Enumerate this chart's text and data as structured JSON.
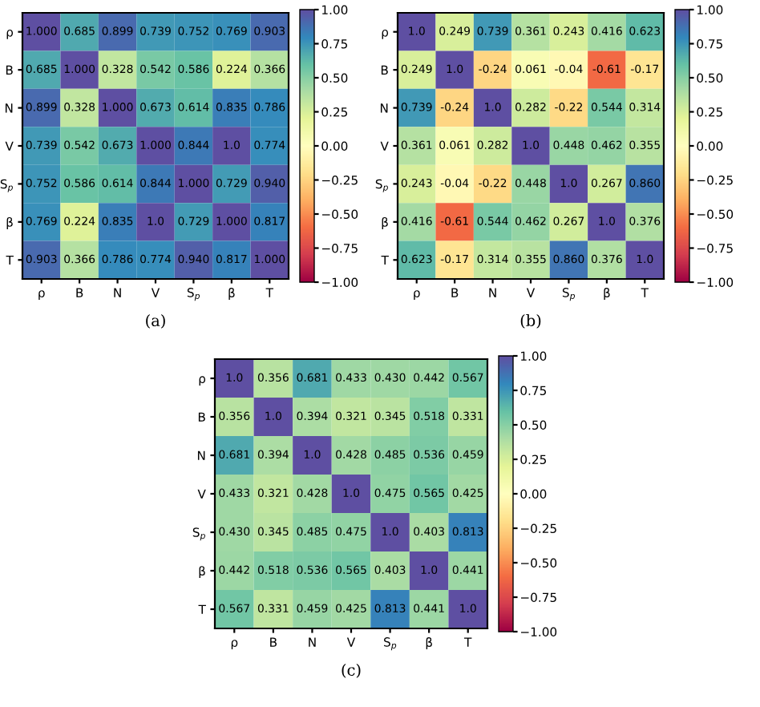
{
  "chart_data": [
    {
      "type": "heatmap",
      "xlabel": "(a)",
      "categories": [
        "ρ",
        "B",
        "N",
        "V",
        "S$_{p}$",
        "β",
        "T"
      ],
      "y_categories": [
        "ρ",
        "B",
        "N",
        "V",
        "S$_{p}$",
        "β",
        "T"
      ],
      "cells": [
        [
          1.0,
          0.685,
          0.899,
          0.739,
          0.752,
          0.769,
          0.903
        ],
        [
          0.685,
          1.0,
          0.328,
          0.542,
          0.586,
          0.224,
          0.366
        ],
        [
          0.899,
          0.328,
          1.0,
          0.673,
          0.614,
          0.835,
          0.786
        ],
        [
          0.739,
          0.542,
          0.673,
          1.0,
          0.844,
          1.0,
          0.774
        ],
        [
          0.752,
          0.586,
          0.614,
          0.844,
          1.0,
          0.729,
          0.94
        ],
        [
          0.769,
          0.224,
          0.835,
          1.0,
          0.729,
          1.0,
          0.817
        ],
        [
          0.903,
          0.366,
          0.786,
          0.774,
          0.94,
          0.817,
          1.0
        ]
      ],
      "cell_labels": [
        [
          "1.000",
          "0.685",
          "0.899",
          "0.739",
          "0.752",
          "0.769",
          "0.903"
        ],
        [
          "0.685",
          "1.000",
          "0.328",
          "0.542",
          "0.586",
          "0.224",
          "0.366"
        ],
        [
          "0.899",
          "0.328",
          "1.000",
          "0.673",
          "0.614",
          "0.835",
          "0.786"
        ],
        [
          "0.739",
          "0.542",
          "0.673",
          "1.000",
          "0.844",
          "1.0",
          "0.774"
        ],
        [
          "0.752",
          "0.586",
          "0.614",
          "0.844",
          "1.000",
          "0.729",
          "0.940"
        ],
        [
          "0.769",
          "0.224",
          "0.835",
          "1.0",
          "0.729",
          "1.000",
          "0.817"
        ],
        [
          "0.903",
          "0.366",
          "0.786",
          "0.774",
          "0.940",
          "0.817",
          "1.000"
        ]
      ],
      "clim": [
        -1,
        1
      ],
      "cticks": [
        {
          "value": -1,
          "label": "−1.00"
        },
        {
          "value": -0.75,
          "label": "−0.75"
        },
        {
          "value": -0.5,
          "label": "−0.50"
        },
        {
          "value": -0.25,
          "label": "−0.25"
        },
        {
          "value": 0,
          "label": "0.00"
        },
        {
          "value": 0.25,
          "label": "0.25"
        },
        {
          "value": 0.5,
          "label": "0.50"
        },
        {
          "value": 0.75,
          "label": "0.75"
        },
        {
          "value": 1,
          "label": "1.00"
        }
      ]
    },
    {
      "type": "heatmap",
      "xlabel": "(b)",
      "categories": [
        "ρ",
        "B",
        "N",
        "V",
        "S$_{p}$",
        "β",
        "T"
      ],
      "y_categories": [
        "ρ",
        "B",
        "N",
        "V",
        "S$_{p}$",
        "β",
        "T"
      ],
      "cells": [
        [
          1.0,
          0.249,
          0.739,
          0.361,
          0.243,
          0.416,
          0.623
        ],
        [
          0.249,
          1.0,
          -0.24,
          0.061,
          -0.04,
          -0.61,
          -0.17
        ],
        [
          0.739,
          -0.24,
          1.0,
          0.282,
          -0.22,
          0.544,
          0.314
        ],
        [
          0.361,
          0.061,
          0.282,
          1.0,
          0.448,
          0.462,
          0.355
        ],
        [
          0.243,
          -0.04,
          -0.22,
          0.448,
          1.0,
          0.267,
          0.86
        ],
        [
          0.416,
          -0.61,
          0.544,
          0.462,
          0.267,
          1.0,
          0.376
        ],
        [
          0.623,
          -0.17,
          0.314,
          0.355,
          0.86,
          0.376,
          1.0
        ]
      ],
      "cell_labels": [
        [
          "1.0",
          "0.249",
          "0.739",
          "0.361",
          "0.243",
          "0.416",
          "0.623"
        ],
        [
          "0.249",
          "1.0",
          "-0.24",
          "0.061",
          "-0.04",
          "-0.61",
          "-0.17"
        ],
        [
          "0.739",
          "-0.24",
          "1.0",
          "0.282",
          "-0.22",
          "0.544",
          "0.314"
        ],
        [
          "0.361",
          "0.061",
          "0.282",
          "1.0",
          "0.448",
          "0.462",
          "0.355"
        ],
        [
          "0.243",
          "-0.04",
          "-0.22",
          "0.448",
          "1.0",
          "0.267",
          "0.860"
        ],
        [
          "0.416",
          "-0.61",
          "0.544",
          "0.462",
          "0.267",
          "1.0",
          "0.376"
        ],
        [
          "0.623",
          "-0.17",
          "0.314",
          "0.355",
          "0.860",
          "0.376",
          "1.0"
        ]
      ],
      "clim": [
        -1,
        1
      ],
      "cticks": [
        {
          "value": -1,
          "label": "−1.00"
        },
        {
          "value": -0.75,
          "label": "−0.75"
        },
        {
          "value": -0.5,
          "label": "−0.50"
        },
        {
          "value": -0.25,
          "label": "−0.25"
        },
        {
          "value": 0,
          "label": "0.00"
        },
        {
          "value": 0.25,
          "label": "0.25"
        },
        {
          "value": 0.5,
          "label": "0.50"
        },
        {
          "value": 0.75,
          "label": "0.75"
        },
        {
          "value": 1,
          "label": "1.00"
        }
      ]
    },
    {
      "type": "heatmap",
      "xlabel": "(c)",
      "categories": [
        "ρ",
        "B",
        "N",
        "V",
        "S$_{p}$",
        "β",
        "T"
      ],
      "y_categories": [
        "ρ",
        "B",
        "N",
        "V",
        "S$_{p}$",
        "β",
        "T"
      ],
      "cells": [
        [
          1.0,
          0.356,
          0.681,
          0.433,
          0.43,
          0.442,
          0.567
        ],
        [
          0.356,
          1.0,
          0.394,
          0.321,
          0.345,
          0.518,
          0.331
        ],
        [
          0.681,
          0.394,
          1.0,
          0.428,
          0.485,
          0.536,
          0.459
        ],
        [
          0.433,
          0.321,
          0.428,
          1.0,
          0.475,
          0.565,
          0.425
        ],
        [
          0.43,
          0.345,
          0.485,
          0.475,
          1.0,
          0.403,
          0.813
        ],
        [
          0.442,
          0.518,
          0.536,
          0.565,
          0.403,
          1.0,
          0.441
        ],
        [
          0.567,
          0.331,
          0.459,
          0.425,
          0.813,
          0.441,
          1.0
        ]
      ],
      "cell_labels": [
        [
          "1.0",
          "0.356",
          "0.681",
          "0.433",
          "0.430",
          "0.442",
          "0.567"
        ],
        [
          "0.356",
          "1.0",
          "0.394",
          "0.321",
          "0.345",
          "0.518",
          "0.331"
        ],
        [
          "0.681",
          "0.394",
          "1.0",
          "0.428",
          "0.485",
          "0.536",
          "0.459"
        ],
        [
          "0.433",
          "0.321",
          "0.428",
          "1.0",
          "0.475",
          "0.565",
          "0.425"
        ],
        [
          "0.430",
          "0.345",
          "0.485",
          "0.475",
          "1.0",
          "0.403",
          "0.813"
        ],
        [
          "0.442",
          "0.518",
          "0.536",
          "0.565",
          "0.403",
          "1.0",
          "0.441"
        ],
        [
          "0.567",
          "0.331",
          "0.459",
          "0.425",
          "0.813",
          "0.441",
          "1.0"
        ]
      ],
      "clim": [
        -1,
        1
      ],
      "cticks": [
        {
          "value": -1,
          "label": "−1.00"
        },
        {
          "value": -0.75,
          "label": "−0.75"
        },
        {
          "value": -0.5,
          "label": "−0.50"
        },
        {
          "value": -0.25,
          "label": "−0.25"
        },
        {
          "value": 0,
          "label": "0.00"
        },
        {
          "value": 0.25,
          "label": "0.25"
        },
        {
          "value": 0.5,
          "label": "0.50"
        },
        {
          "value": 0.75,
          "label": "0.75"
        },
        {
          "value": 1,
          "label": "1.00"
        }
      ]
    }
  ]
}
